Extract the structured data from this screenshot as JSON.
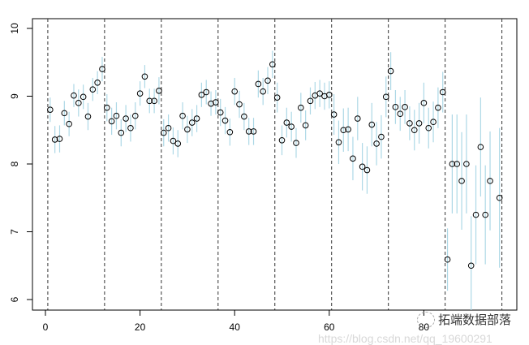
{
  "chart_data": {
    "type": "scatter",
    "title": "",
    "xlabel": "",
    "ylabel": "",
    "xlim": [
      -1,
      100
    ],
    "ylim": [
      5.85,
      10.15
    ],
    "x_ticks": [
      0,
      20,
      40,
      60,
      80
    ],
    "y_ticks": [
      6,
      7,
      8,
      9,
      10
    ],
    "grid": false,
    "point_style": "open circle",
    "errorbar_color": "#add8e6",
    "point_color": "#000000",
    "group_separators": [
      0.5,
      12.5,
      24.5,
      36.5,
      48.5,
      60.5,
      72.5,
      84.5,
      96.5
    ],
    "points": {
      "x": [
        1,
        2,
        3,
        4,
        5,
        6,
        7,
        8,
        9,
        10,
        11,
        12,
        13,
        14,
        15,
        16,
        17,
        18,
        19,
        20,
        21,
        22,
        23,
        24,
        25,
        26,
        27,
        28,
        29,
        30,
        31,
        32,
        33,
        34,
        35,
        36,
        37,
        38,
        39,
        40,
        41,
        42,
        43,
        44,
        45,
        46,
        47,
        48,
        49,
        50,
        51,
        52,
        53,
        54,
        55,
        56,
        57,
        58,
        59,
        60,
        61,
        62,
        63,
        64,
        65,
        66,
        67,
        68,
        69,
        70,
        71,
        72,
        73,
        74,
        75,
        76,
        77,
        78,
        79,
        80,
        81,
        82,
        83,
        84,
        85,
        86,
        87,
        88,
        89,
        90,
        91,
        92,
        93,
        94,
        95,
        96
      ],
      "y": [
        8.8,
        8.36,
        8.37,
        8.75,
        8.59,
        9.01,
        8.9,
        8.99,
        8.7,
        9.1,
        9.2,
        9.4,
        8.83,
        8.63,
        8.71,
        8.46,
        8.67,
        8.53,
        8.71,
        9.04,
        9.29,
        8.93,
        8.93,
        9.08,
        8.46,
        8.53,
        8.34,
        8.3,
        8.71,
        8.51,
        8.61,
        8.67,
        9.02,
        9.06,
        8.89,
        8.91,
        8.76,
        8.64,
        8.47,
        9.07,
        8.88,
        8.7,
        8.48,
        8.48,
        9.18,
        9.07,
        9.23,
        9.47,
        8.98,
        8.35,
        8.61,
        8.55,
        8.31,
        8.83,
        8.57,
        8.93,
        9.01,
        9.04,
        9.0,
        9.02,
        8.73,
        8.32,
        8.5,
        8.51,
        8.08,
        8.67,
        7.96,
        7.91,
        8.58,
        8.3,
        8.4,
        8.99,
        9.37,
        8.84,
        8.74,
        8.84,
        8.6,
        8.5,
        8.6,
        8.9,
        8.53,
        8.62,
        8.83,
        9.06,
        6.59,
        8.0,
        8.0,
        7.75,
        8.0,
        6.5,
        7.25,
        8.25,
        7.25,
        7.75,
        null,
        7.5
      ],
      "error": [
        0.18,
        0.2,
        0.2,
        0.18,
        0.18,
        0.17,
        0.2,
        0.18,
        0.2,
        0.17,
        0.17,
        0.18,
        0.2,
        0.2,
        0.2,
        0.2,
        0.2,
        0.2,
        0.2,
        0.18,
        0.17,
        0.18,
        0.18,
        0.2,
        0.2,
        0.2,
        0.2,
        0.2,
        0.2,
        0.2,
        0.2,
        0.2,
        0.18,
        0.18,
        0.18,
        0.18,
        0.2,
        0.2,
        0.2,
        0.2,
        0.2,
        0.2,
        0.2,
        0.2,
        0.2,
        0.2,
        0.2,
        0.2,
        0.22,
        0.22,
        0.22,
        0.22,
        0.22,
        0.22,
        0.22,
        0.2,
        0.2,
        0.2,
        0.2,
        0.2,
        0.3,
        0.32,
        0.32,
        0.32,
        0.32,
        0.32,
        0.35,
        0.35,
        0.32,
        0.32,
        0.32,
        0.3,
        0.28,
        0.25,
        0.25,
        0.25,
        0.25,
        0.3,
        0.3,
        0.3,
        0.3,
        0.3,
        0.3,
        0.3,
        0.46,
        0.73,
        0.73,
        0.72,
        0.73,
        0.73,
        0.73,
        0.73,
        0.73,
        0.73,
        null,
        1.03
      ]
    }
  },
  "watermark": {
    "text": "拓端数据部落",
    "url": "https://blog.csdn.net/qq_19600291"
  }
}
